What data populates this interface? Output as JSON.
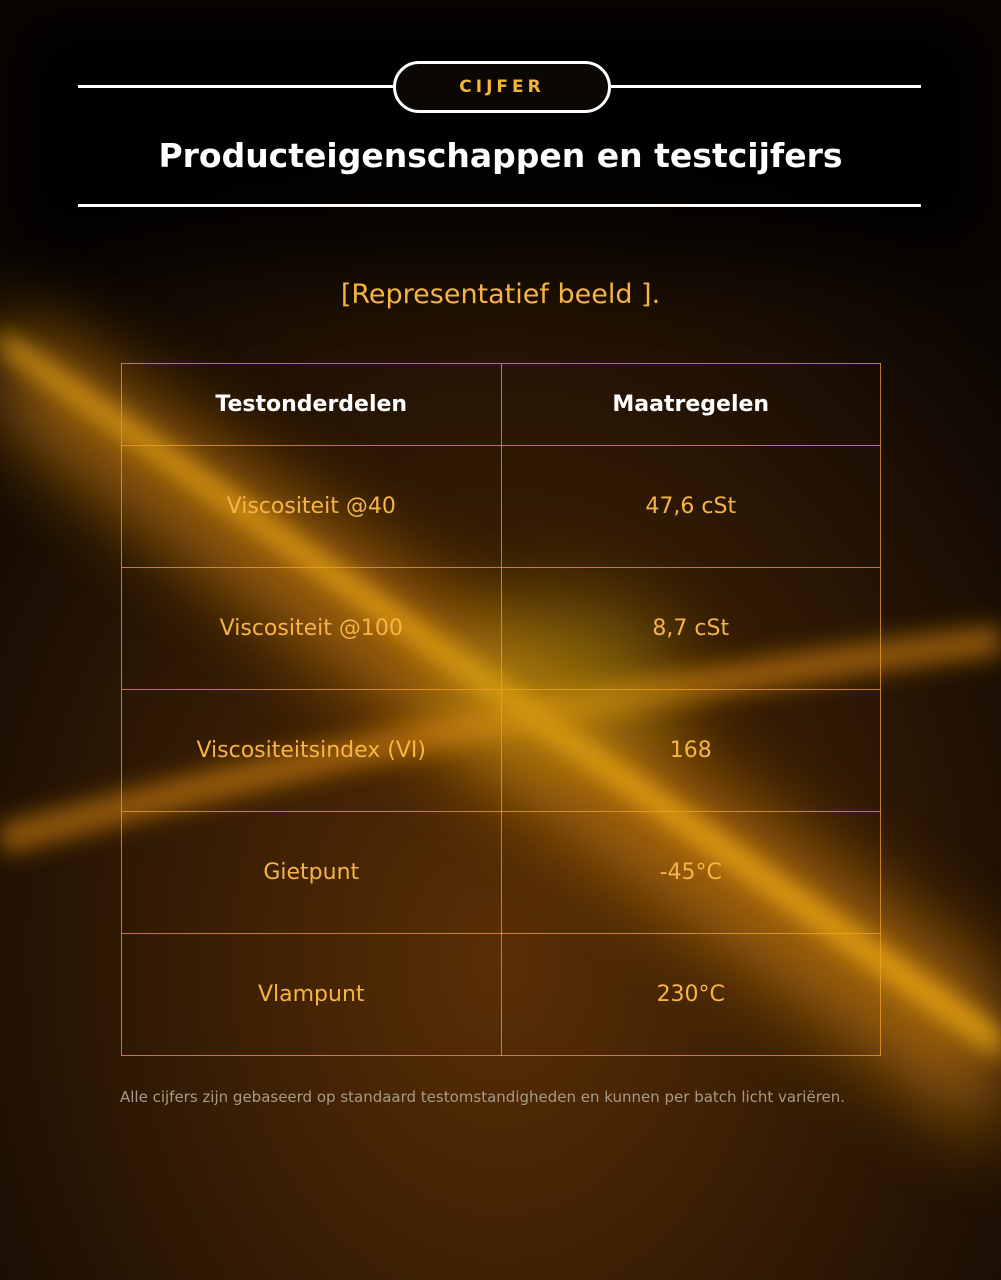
{
  "header": {
    "badge": "CIJFER",
    "title": "Producteigenschappen en testcijfers"
  },
  "subtitle": "[Representatief beeld ].",
  "table": {
    "columns": [
      "Testonderdelen",
      "Maatregelen"
    ],
    "rows": [
      [
        "Viscositeit @40",
        "47,6 cSt"
      ],
      [
        "Viscositeit @100",
        "8,7 cSt"
      ],
      [
        "Viscositeitsindex (VI)",
        "168"
      ],
      [
        "Gietpunt",
        "-45°C"
      ],
      [
        "Vlampunt",
        "230°C"
      ]
    ]
  },
  "footnote": "Alle cijfers zijn gebaseerd op standaard testomstandigheden en kunnen per batch licht variëren."
}
